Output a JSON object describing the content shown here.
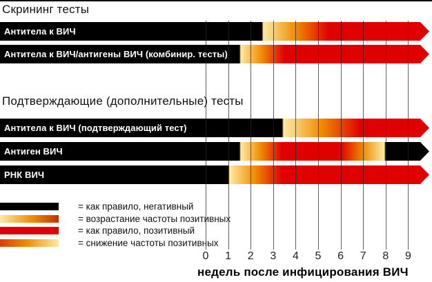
{
  "colors": {
    "negative": "#000000",
    "positive": "#e10000",
    "rise_start": "#fdeaa6",
    "rise_mid": "#ef8c00",
    "grid": "#232323"
  },
  "chart_data": {
    "type": "timeline-bars",
    "x_axis": {
      "label": "недель после инфицирования ВИЧ",
      "ticks": [
        "0",
        "1",
        "2",
        "3",
        "4",
        "5",
        "6",
        "7",
        "8",
        "9"
      ],
      "unit": "weeks",
      "range": [
        0,
        10
      ],
      "grid": true
    },
    "groups": [
      {
        "title": "Скрининг тесты",
        "bars": [
          {
            "label": "Антитела к ВИЧ",
            "phases": [
              {
                "state": "negative",
                "to": 2.5
              },
              {
                "state": "rising",
                "to": 5.5
              },
              {
                "state": "positive",
                "to": 10
              }
            ]
          },
          {
            "label": "Антитела к ВИЧ/антигены ВИЧ (комбинир. тесты)",
            "phases": [
              {
                "state": "negative",
                "to": 1.5
              },
              {
                "state": "rising",
                "to": 3.5
              },
              {
                "state": "positive",
                "to": 10
              }
            ]
          }
        ]
      },
      {
        "title": "Подтверждающие (дополнительные) тесты",
        "bars": [
          {
            "label": "Антитела к ВИЧ (подтверждающий тест)",
            "phases": [
              {
                "state": "negative",
                "to": 3.4
              },
              {
                "state": "rising",
                "to": 6.9
              },
              {
                "state": "positive",
                "to": 10
              }
            ]
          },
          {
            "label": "Антиген ВИЧ",
            "phases": [
              {
                "state": "negative",
                "to": 1.5
              },
              {
                "state": "rising",
                "to": 3.4
              },
              {
                "state": "positive",
                "to": 6.0
              },
              {
                "state": "declining",
                "to": 8.0
              },
              {
                "state": "negative",
                "to": 10
              }
            ]
          },
          {
            "label": "РНК ВИЧ",
            "phases": [
              {
                "state": "negative",
                "to": 1.0
              },
              {
                "state": "rising",
                "to": 3.4
              },
              {
                "state": "positive",
                "to": 10
              }
            ]
          }
        ]
      }
    ],
    "legend": [
      {
        "state": "negative",
        "label": "= как правило, негативный"
      },
      {
        "state": "rising",
        "label": "= возрастание частоты позитивных"
      },
      {
        "state": "positive",
        "label": "= как правило, позитивный"
      },
      {
        "state": "declining",
        "label": "= снижение частоты позитивных"
      }
    ]
  }
}
